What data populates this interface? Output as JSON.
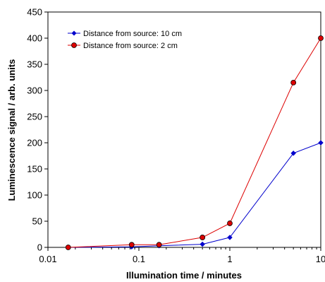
{
  "chart_data": {
    "type": "line",
    "xscale": "log",
    "xlabel": "Illumination time / minutes",
    "ylabel": "Luminescence signal / arb. units",
    "xlim": [
      0.01,
      10
    ],
    "ylim": [
      0,
      450
    ],
    "xticks": [
      0.01,
      0.1,
      1,
      10
    ],
    "xtick_labels": [
      "0.01",
      "0.1",
      "1",
      "10"
    ],
    "yticks": [
      0,
      50,
      100,
      150,
      200,
      250,
      300,
      350,
      400,
      450
    ],
    "ytick_labels": [
      "0",
      "50",
      "100",
      "150",
      "200",
      "250",
      "300",
      "350",
      "400",
      "450"
    ],
    "grid": false,
    "legend_position": "top-left",
    "series": [
      {
        "name": "Distance from source: 10 cm",
        "color": "#0000cc",
        "marker": "diamond",
        "x": [
          0.0167,
          0.0833,
          0.1667,
          0.5,
          1,
          5,
          10
        ],
        "y": [
          0,
          1,
          3,
          6,
          19,
          180,
          200
        ]
      },
      {
        "name": "Distance from source: 2 cm",
        "color": "#dd0000",
        "marker": "circle",
        "x": [
          0.0167,
          0.0833,
          0.1667,
          0.5,
          1,
          5,
          10
        ],
        "y": [
          0,
          5,
          5,
          19,
          46,
          315,
          400
        ]
      }
    ]
  }
}
